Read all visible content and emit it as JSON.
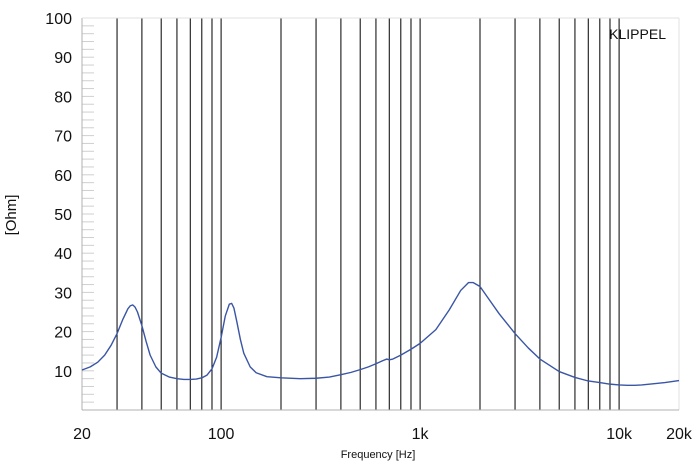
{
  "chart_data": {
    "type": "line",
    "xlabel": "Frequency [Hz]",
    "ylabel": "[Ohm]",
    "watermark": "KLIPPEL",
    "x_scale": "log",
    "xlim": [
      20,
      20000
    ],
    "ylim": [
      0,
      100
    ],
    "x_tick_values": [
      20,
      100,
      1000,
      10000,
      20000
    ],
    "x_tick_labels": [
      "20",
      "100",
      "1k",
      "10k",
      "20k"
    ],
    "y_ticks": [
      10,
      20,
      30,
      40,
      50,
      60,
      70,
      80,
      90,
      100
    ],
    "y_tick_labels": [
      "10",
      "20",
      "30",
      "40",
      "50",
      "60",
      "70",
      "80",
      "90",
      "100"
    ],
    "vertical_gridlines_hz": [
      30,
      40,
      50,
      60,
      70,
      80,
      90,
      100,
      200,
      300,
      400,
      500,
      600,
      700,
      800,
      900,
      1000,
      2000,
      3000,
      4000,
      5000,
      6000,
      7000,
      8000,
      9000,
      10000
    ],
    "grid": true,
    "colors": {
      "series": "#3a55a5",
      "grid": "#000000",
      "axis": "#b0b0b0"
    },
    "series": [
      {
        "values": [
          [
            20,
            10.2
          ],
          [
            22,
            11.0
          ],
          [
            24,
            12.2
          ],
          [
            26,
            14.0
          ],
          [
            28,
            16.5
          ],
          [
            30,
            19.5
          ],
          [
            32,
            23.0
          ],
          [
            34,
            25.8
          ],
          [
            35,
            26.6
          ],
          [
            36,
            26.8
          ],
          [
            37,
            26.2
          ],
          [
            38,
            25.0
          ],
          [
            40,
            21.5
          ],
          [
            42,
            17.5
          ],
          [
            44,
            14.0
          ],
          [
            47,
            11.0
          ],
          [
            50,
            9.4
          ],
          [
            55,
            8.4
          ],
          [
            60,
            8.0
          ],
          [
            65,
            7.8
          ],
          [
            70,
            7.8
          ],
          [
            75,
            7.9
          ],
          [
            80,
            8.2
          ],
          [
            85,
            8.9
          ],
          [
            90,
            10.5
          ],
          [
            95,
            13.5
          ],
          [
            100,
            18.5
          ],
          [
            105,
            24.0
          ],
          [
            110,
            27.0
          ],
          [
            113,
            27.2
          ],
          [
            116,
            26.0
          ],
          [
            120,
            22.5
          ],
          [
            125,
            18.0
          ],
          [
            130,
            14.5
          ],
          [
            140,
            11.0
          ],
          [
            150,
            9.5
          ],
          [
            170,
            8.5
          ],
          [
            200,
            8.2
          ],
          [
            250,
            8.0
          ],
          [
            300,
            8.1
          ],
          [
            350,
            8.4
          ],
          [
            400,
            9.0
          ],
          [
            450,
            9.6
          ],
          [
            500,
            10.3
          ],
          [
            550,
            11.0
          ],
          [
            600,
            11.8
          ],
          [
            650,
            12.6
          ],
          [
            680,
            13.0
          ],
          [
            700,
            12.8
          ],
          [
            730,
            13.0
          ],
          [
            800,
            14.0
          ],
          [
            900,
            15.5
          ],
          [
            1000,
            17.0
          ],
          [
            1200,
            20.5
          ],
          [
            1400,
            25.5
          ],
          [
            1600,
            30.5
          ],
          [
            1750,
            32.5
          ],
          [
            1850,
            32.5
          ],
          [
            2000,
            31.5
          ],
          [
            2200,
            28.5
          ],
          [
            2500,
            24.5
          ],
          [
            3000,
            19.5
          ],
          [
            3500,
            15.8
          ],
          [
            4000,
            13.0
          ],
          [
            5000,
            9.8
          ],
          [
            6000,
            8.3
          ],
          [
            7000,
            7.4
          ],
          [
            8000,
            7.0
          ],
          [
            9000,
            6.6
          ],
          [
            10000,
            6.4
          ],
          [
            11000,
            6.3
          ],
          [
            12000,
            6.3
          ],
          [
            13000,
            6.4
          ],
          [
            15000,
            6.7
          ],
          [
            17000,
            7.0
          ],
          [
            20000,
            7.5
          ]
        ]
      }
    ]
  }
}
